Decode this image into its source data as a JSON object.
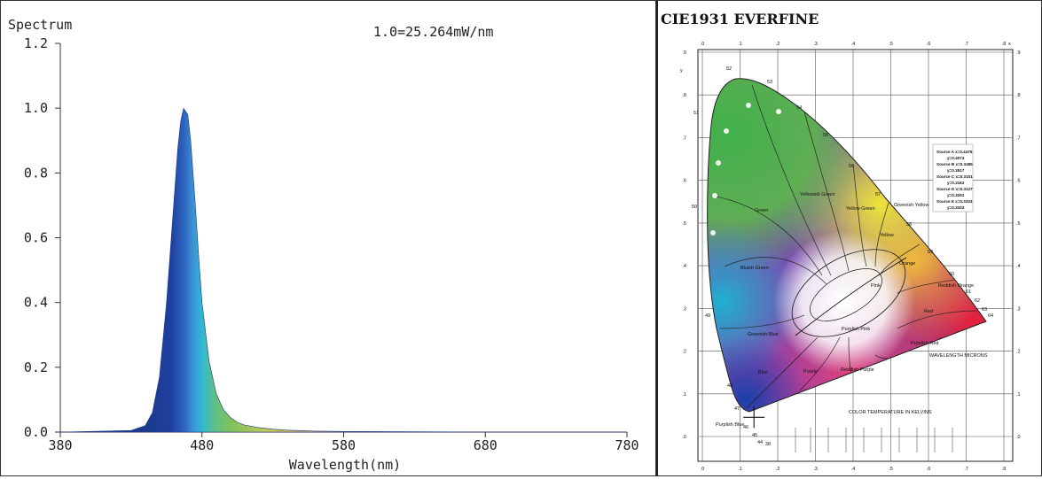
{
  "chart_data": [
    {
      "type": "area",
      "title": "Spectrum",
      "annotation": "1.0=25.264mW/nm",
      "xlabel": "Wavelength(nm)",
      "ylabel": "",
      "xlim": [
        380,
        780
      ],
      "ylim": [
        0,
        1.2
      ],
      "xticks": [
        "380",
        "480",
        "580",
        "680",
        "780"
      ],
      "yticks": [
        "0.0",
        "0.2",
        "0.4",
        "0.6",
        "0.8",
        "1.0",
        "1.2"
      ],
      "grid": false,
      "series": [
        {
          "x": [
            380,
            430,
            440,
            445,
            450,
            455,
            460,
            463,
            465,
            467,
            470,
            472,
            475,
            478,
            480,
            485,
            490,
            495,
            500,
            505,
            510,
            520,
            530,
            540,
            560,
            580,
            620,
            680,
            780
          ],
          "y": [
            0.0,
            0.005,
            0.02,
            0.06,
            0.17,
            0.4,
            0.7,
            0.88,
            0.96,
            1.0,
            0.98,
            0.9,
            0.72,
            0.52,
            0.4,
            0.22,
            0.12,
            0.07,
            0.045,
            0.03,
            0.022,
            0.014,
            0.009,
            0.006,
            0.003,
            0.002,
            0.001,
            0.0,
            0.0
          ]
        }
      ]
    },
    {
      "type": "scatter",
      "title": "CIE1931 EVERFINE",
      "xlim": [
        0,
        0.8
      ],
      "ylim": [
        0,
        0.9
      ],
      "xticks": [
        ".0",
        ".1",
        ".2",
        ".3",
        ".4",
        ".5",
        ".6",
        ".7",
        ".8"
      ],
      "yticks": [
        ".0",
        ".1",
        ".2",
        ".3",
        ".4",
        ".5",
        ".6",
        ".7",
        ".8",
        ".9"
      ],
      "axis_x_label": "x",
      "axis_y_label": "y",
      "series": [
        {
          "x": [
            0.137
          ],
          "y": [
            0.045
          ]
        }
      ],
      "locus_labels": [
        "49",
        "50",
        "51",
        "52",
        "53",
        "54",
        "55",
        "56",
        "57",
        "58",
        "59",
        "60",
        "61",
        "62",
        "63",
        "64",
        "48",
        "47",
        "46",
        "45",
        "44",
        "38"
      ],
      "region_labels": [
        "Green",
        "Yellowish Green",
        "Yellow Green",
        "Greenish Yellow",
        "Yellow",
        "Orange",
        "Bluish Green",
        "Greenish Blue",
        "Blue",
        "Purple",
        "Purplish Pink",
        "Pink",
        "Red",
        "Reddish Orange",
        "Purplish Red",
        "Reddish Purple",
        "Purplish Blue"
      ],
      "axis_note": "COLOR TEMPERATURE IN KELVINS",
      "wavelength_note": "WAVELENGTH MICRONS",
      "source_legend": [
        "Source A x=0.4476",
        "y=0.4074",
        "Source B x=0.3485",
        "y=0.3517",
        "Source C x=0.3101",
        "y=0.3162",
        "Source D x=0.3127",
        "y=0.3291",
        "Source E x=0.3333",
        "y=0.3333"
      ]
    }
  ]
}
